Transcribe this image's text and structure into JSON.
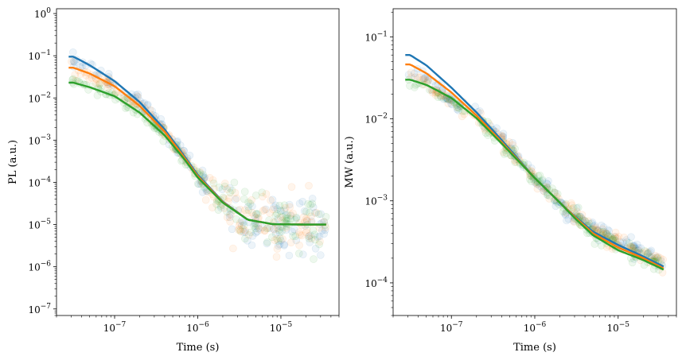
{
  "chart_data": [
    {
      "type": "scatter",
      "title": "",
      "xlabel": "Time (s)",
      "ylabel": "PL (a.u.)",
      "xscale": "log",
      "yscale": "log",
      "xlim": [
        2e-08,
        5e-05
      ],
      "ylim": [
        7e-08,
        1.3
      ],
      "grid": false,
      "legend": "none",
      "xticks": [
        {
          "value": 1e-07,
          "base": "10",
          "exp": "−7"
        },
        {
          "value": 1e-06,
          "base": "10",
          "exp": "−6"
        },
        {
          "value": 1e-05,
          "base": "10",
          "exp": "−5"
        }
      ],
      "yticks": [
        {
          "value": 1e-07,
          "base": "10",
          "exp": "−7"
        },
        {
          "value": 1e-06,
          "base": "10",
          "exp": "−6"
        },
        {
          "value": 1e-05,
          "base": "10",
          "exp": "−5"
        },
        {
          "value": 0.0001,
          "base": "10",
          "exp": "−4"
        },
        {
          "value": 0.001,
          "base": "10",
          "exp": "−3"
        },
        {
          "value": 0.01,
          "base": "10",
          "exp": "−2"
        },
        {
          "value": 0.1,
          "base": "10",
          "exp": "−1"
        },
        {
          "value": 1,
          "base": "10",
          "exp": "0"
        }
      ],
      "series": [
        {
          "color": "#1f77b4",
          "fit": {
            "x": [
              2.8e-08,
              3.2e-08,
              5e-08,
              1e-07,
              2e-07,
              4e-07,
              7e-07,
              1e-06,
              2e-06,
              4e-06,
              8e-06,
              2e-05,
              3.5e-05
            ],
            "y": [
              0.095,
              0.095,
              0.06,
              0.025,
              0.008,
              0.0018,
              0.0004,
              0.00015,
              3.5e-05,
              1.3e-05,
              1.02e-05,
              1e-05,
              1e-05
            ]
          }
        },
        {
          "color": "#ff7f0e",
          "fit": {
            "x": [
              2.8e-08,
              3.2e-08,
              5e-08,
              1e-07,
              2e-07,
              4e-07,
              7e-07,
              1e-06,
              2e-06,
              4e-06,
              8e-06,
              2e-05,
              3.5e-05
            ],
            "y": [
              0.052,
              0.052,
              0.038,
              0.019,
              0.0065,
              0.0016,
              0.00037,
              0.00014,
              3.4e-05,
              1.3e-05,
              1.02e-05,
              1e-05,
              1e-05
            ]
          }
        },
        {
          "color": "#2ca02c",
          "fit": {
            "x": [
              2.8e-08,
              3.2e-08,
              5e-08,
              1e-07,
              2e-07,
              4e-07,
              7e-07,
              1e-06,
              2e-06,
              4e-06,
              8e-06,
              2e-05,
              3.5e-05
            ],
            "y": [
              0.023,
              0.023,
              0.018,
              0.011,
              0.0045,
              0.0013,
              0.00034,
              0.00013,
              3.3e-05,
              1.3e-05,
              1.02e-05,
              1e-05,
              1e-05
            ]
          }
        }
      ]
    },
    {
      "type": "scatter",
      "title": "",
      "xlabel": "Time (s)",
      "ylabel": "MW (a.u.)",
      "xscale": "log",
      "yscale": "log",
      "xlim": [
        2e-08,
        5e-05
      ],
      "ylim": [
        4e-05,
        0.22
      ],
      "grid": false,
      "legend": "none",
      "xticks": [
        {
          "value": 1e-07,
          "base": "10",
          "exp": "−7"
        },
        {
          "value": 1e-06,
          "base": "10",
          "exp": "−6"
        },
        {
          "value": 1e-05,
          "base": "10",
          "exp": "−5"
        }
      ],
      "yticks": [
        {
          "value": 0.0001,
          "base": "10",
          "exp": "−4"
        },
        {
          "value": 0.001,
          "base": "10",
          "exp": "−3"
        },
        {
          "value": 0.01,
          "base": "10",
          "exp": "−2"
        },
        {
          "value": 0.1,
          "base": "10",
          "exp": "−1"
        }
      ],
      "series": [
        {
          "color": "#1f77b4",
          "fit": {
            "x": [
              2.8e-08,
              3.2e-08,
              5e-08,
              1e-07,
              2e-07,
              4e-07,
              1e-06,
              2e-06,
              3e-06,
              5e-06,
              1e-05,
              2e-05,
              3.5e-05
            ],
            "y": [
              0.06,
              0.06,
              0.045,
              0.024,
              0.012,
              0.0055,
              0.0019,
              0.00095,
              0.00065,
              0.00042,
              0.00029,
              0.00021,
              0.000158
            ]
          }
        },
        {
          "color": "#ff7f0e",
          "fit": {
            "x": [
              2.8e-08,
              3.2e-08,
              5e-08,
              1e-07,
              2e-07,
              4e-07,
              1e-06,
              2e-06,
              3e-06,
              5e-06,
              1e-05,
              2e-05,
              3.5e-05
            ],
            "y": [
              0.046,
              0.046,
              0.036,
              0.021,
              0.011,
              0.0052,
              0.0019,
              0.00095,
              0.00064,
              0.0004,
              0.00027,
              0.0002,
              0.00015
            ]
          }
        },
        {
          "color": "#2ca02c",
          "fit": {
            "x": [
              2.8e-08,
              3.2e-08,
              5e-08,
              1e-07,
              2e-07,
              4e-07,
              1e-06,
              2e-06,
              3e-06,
              5e-06,
              1e-05,
              2e-05,
              3.5e-05
            ],
            "y": [
              0.03,
              0.03,
              0.026,
              0.018,
              0.0102,
              0.005,
              0.0019,
              0.00095,
              0.00062,
              0.00038,
              0.00025,
              0.00019,
              0.000145
            ]
          }
        }
      ]
    }
  ]
}
